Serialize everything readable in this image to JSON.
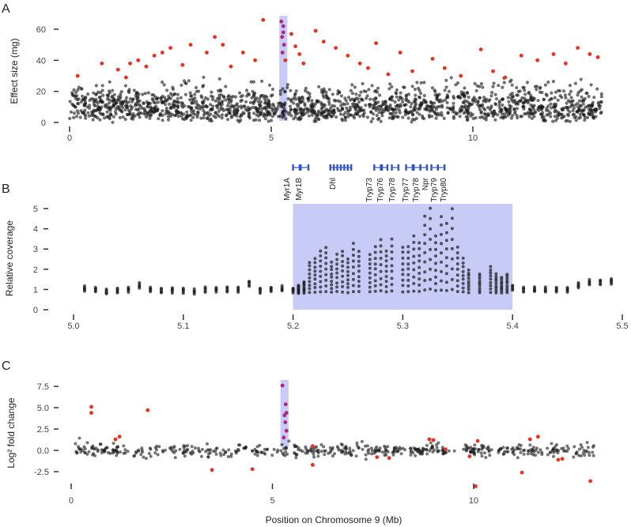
{
  "figure": {
    "xlabel": "Position on Chromosome 9 (Mb)"
  },
  "colors": {
    "points": "#1a1a1a",
    "significant": "#e8321e",
    "region": "#c9cbf7",
    "highlight": "#b0257e",
    "gene": "#3355cc"
  },
  "chart_data": [
    {
      "panel": "A",
      "type": "scatter",
      "ylabel": "Effect size  (mg)",
      "xlim": [
        -0.1,
        13.3
      ],
      "ylim": [
        -3,
        68
      ],
      "x_ticks": [
        "0",
        "5",
        "10"
      ],
      "y_ticks": [
        "0",
        "20",
        "40",
        "60"
      ],
      "highlight_region": [
        5.2,
        5.4
      ],
      "background_points": {
        "count": 1700,
        "x_range": [
          0,
          13.2
        ],
        "y_typical": [
          0,
          32
        ]
      },
      "significant_points": [
        [
          0.2,
          30
        ],
        [
          0.8,
          38
        ],
        [
          1.2,
          34
        ],
        [
          1.4,
          29
        ],
        [
          1.5,
          38
        ],
        [
          1.7,
          40
        ],
        [
          1.9,
          36
        ],
        [
          2.1,
          43
        ],
        [
          2.3,
          45
        ],
        [
          2.5,
          48
        ],
        [
          2.8,
          37
        ],
        [
          3.0,
          50
        ],
        [
          3.4,
          45
        ],
        [
          3.6,
          55
        ],
        [
          3.8,
          50
        ],
        [
          4.0,
          36
        ],
        [
          4.3,
          45
        ],
        [
          4.6,
          40
        ],
        [
          4.8,
          66
        ],
        [
          5.35,
          40
        ],
        [
          5.5,
          57
        ],
        [
          5.6,
          49
        ],
        [
          5.7,
          44
        ],
        [
          5.8,
          38
        ],
        [
          6.1,
          59
        ],
        [
          6.3,
          52
        ],
        [
          6.6,
          48
        ],
        [
          6.9,
          43
        ],
        [
          7.2,
          38
        ],
        [
          7.4,
          35
        ],
        [
          7.6,
          51
        ],
        [
          7.9,
          31
        ],
        [
          8.2,
          45
        ],
        [
          8.5,
          33
        ],
        [
          9.0,
          41
        ],
        [
          9.3,
          35
        ],
        [
          9.7,
          30
        ],
        [
          10.2,
          47
        ],
        [
          10.5,
          33
        ],
        [
          10.8,
          29
        ],
        [
          11.2,
          43
        ],
        [
          11.6,
          40
        ],
        [
          12.0,
          44
        ],
        [
          12.3,
          38
        ],
        [
          12.6,
          48
        ],
        [
          12.9,
          44
        ],
        [
          13.1,
          42
        ]
      ],
      "highlight_points": [
        [
          5.25,
          65
        ],
        [
          5.3,
          62
        ],
        [
          5.3,
          58
        ],
        [
          5.27,
          55
        ],
        [
          5.32,
          50
        ],
        [
          5.28,
          45
        ]
      ]
    },
    {
      "panel": "B",
      "type": "scatter",
      "ylabel": "Relative coverage",
      "xlim": [
        5.0,
        5.5
      ],
      "ylim": [
        0,
        5
      ],
      "x_ticks": [
        "5.0",
        "5.1",
        "5.2",
        "5.3",
        "5.4",
        "5.5"
      ],
      "y_ticks": [
        "0",
        "1",
        "2",
        "3",
        "4",
        "5"
      ],
      "highlight_region": [
        5.2,
        5.4
      ],
      "genes": [
        {
          "name": "Myr1A",
          "start": 5.2,
          "end": 5.206
        },
        {
          "name": "Myr1B",
          "start": 5.207,
          "end": 5.214
        },
        {
          "name": "Dhl",
          "start": 5.234,
          "end": 5.253
        },
        {
          "name": "Tryp73",
          "start": 5.274,
          "end": 5.28
        },
        {
          "name": "Tryp76",
          "start": 5.281,
          "end": 5.286
        },
        {
          "name": "Tryp78",
          "start": 5.29,
          "end": 5.296
        },
        {
          "name": "Tryp77",
          "start": 5.303,
          "end": 5.309
        },
        {
          "name": "Tryp78",
          "start": 5.31,
          "end": 5.316
        },
        {
          "name": "Npr",
          "start": 5.316,
          "end": 5.322
        },
        {
          "name": "Tryp79",
          "start": 5.326,
          "end": 5.332
        },
        {
          "name": "Tryp80",
          "start": 5.332,
          "end": 5.338
        }
      ],
      "coverage_bins": [
        {
          "x": 5.01,
          "mean": 1.05
        },
        {
          "x": 5.02,
          "mean": 1.0
        },
        {
          "x": 5.03,
          "mean": 0.9
        },
        {
          "x": 5.04,
          "mean": 0.95
        },
        {
          "x": 5.05,
          "mean": 1.0
        },
        {
          "x": 5.06,
          "mean": 1.2
        },
        {
          "x": 5.07,
          "mean": 1.0
        },
        {
          "x": 5.08,
          "mean": 0.95
        },
        {
          "x": 5.09,
          "mean": 0.95
        },
        {
          "x": 5.1,
          "mean": 0.95
        },
        {
          "x": 5.11,
          "mean": 0.9
        },
        {
          "x": 5.12,
          "mean": 1.0
        },
        {
          "x": 5.13,
          "mean": 1.0
        },
        {
          "x": 5.14,
          "mean": 1.0
        },
        {
          "x": 5.15,
          "mean": 1.0
        },
        {
          "x": 5.16,
          "mean": 1.3
        },
        {
          "x": 5.17,
          "mean": 0.95
        },
        {
          "x": 5.18,
          "mean": 1.0
        },
        {
          "x": 5.19,
          "mean": 1.05
        },
        {
          "x": 5.2,
          "mean": 0.95
        },
        {
          "x": 5.205,
          "mean": 1.0
        },
        {
          "x": 5.21,
          "mean": 1.1
        },
        {
          "x": 5.215,
          "mean": 1.6
        },
        {
          "x": 5.22,
          "mean": 1.7
        },
        {
          "x": 5.225,
          "mean": 1.9
        },
        {
          "x": 5.23,
          "mean": 2.0
        },
        {
          "x": 5.235,
          "mean": 1.6
        },
        {
          "x": 5.24,
          "mean": 1.8
        },
        {
          "x": 5.245,
          "mean": 1.9
        },
        {
          "x": 5.25,
          "mean": 1.7
        },
        {
          "x": 5.255,
          "mean": 2.1
        },
        {
          "x": 5.26,
          "mean": 1.9
        },
        {
          "x": 5.27,
          "mean": 1.8
        },
        {
          "x": 5.275,
          "mean": 2.0
        },
        {
          "x": 5.28,
          "mean": 2.2
        },
        {
          "x": 5.285,
          "mean": 1.9
        },
        {
          "x": 5.29,
          "mean": 2.2
        },
        {
          "x": 5.3,
          "mean": 2.0
        },
        {
          "x": 5.305,
          "mean": 2.0
        },
        {
          "x": 5.31,
          "mean": 2.3
        },
        {
          "x": 5.315,
          "mean": 2.1
        },
        {
          "x": 5.32,
          "mean": 2.8
        },
        {
          "x": 5.325,
          "mean": 3.0
        },
        {
          "x": 5.33,
          "mean": 2.3
        },
        {
          "x": 5.335,
          "mean": 2.8
        },
        {
          "x": 5.34,
          "mean": 2.6
        },
        {
          "x": 5.345,
          "mean": 3.0
        },
        {
          "x": 5.35,
          "mean": 2.0
        },
        {
          "x": 5.355,
          "mean": 1.7
        },
        {
          "x": 5.36,
          "mean": 1.4
        },
        {
          "x": 5.37,
          "mean": 1.3
        },
        {
          "x": 5.38,
          "mean": 1.5
        },
        {
          "x": 5.385,
          "mean": 1.3
        },
        {
          "x": 5.39,
          "mean": 1.2
        },
        {
          "x": 5.395,
          "mean": 1.3
        },
        {
          "x": 5.4,
          "mean": 1.1
        },
        {
          "x": 5.41,
          "mean": 1.0
        },
        {
          "x": 5.42,
          "mean": 1.0
        },
        {
          "x": 5.43,
          "mean": 1.0
        },
        {
          "x": 5.44,
          "mean": 1.0
        },
        {
          "x": 5.45,
          "mean": 1.0
        },
        {
          "x": 5.46,
          "mean": 1.2
        },
        {
          "x": 5.47,
          "mean": 1.35
        },
        {
          "x": 5.48,
          "mean": 1.35
        },
        {
          "x": 5.49,
          "mean": 1.4
        }
      ]
    },
    {
      "panel": "C",
      "type": "scatter",
      "ylabel": "Log² fold change",
      "xlim": [
        -0.2,
        13.3
      ],
      "ylim": [
        -4.3,
        8.3
      ],
      "x_ticks": [
        "0",
        "5",
        "10"
      ],
      "y_ticks": [
        "7.5",
        "5.0",
        "2.5",
        "0.0",
        "-2.5"
      ],
      "highlight_region": [
        5.2,
        5.4
      ],
      "background_points": {
        "count": 520,
        "x_range": [
          0.1,
          13.0
        ],
        "y_typical": [
          -0.8,
          1.0
        ]
      },
      "significant_points": [
        [
          0.5,
          5.1
        ],
        [
          0.5,
          4.4
        ],
        [
          1.1,
          1.3
        ],
        [
          1.2,
          1.6
        ],
        [
          1.9,
          4.7
        ],
        [
          3.5,
          -2.3
        ],
        [
          4.5,
          -2.2
        ],
        [
          6.0,
          0.5
        ],
        [
          6.0,
          -1.7
        ],
        [
          7.6,
          -0.8
        ],
        [
          7.9,
          -0.9
        ],
        [
          8.9,
          1.3
        ],
        [
          9.0,
          1.2
        ],
        [
          9.3,
          0.1
        ],
        [
          9.9,
          -0.7
        ],
        [
          10.1,
          1.1
        ],
        [
          10.05,
          -4.2
        ],
        [
          11.2,
          -2.6
        ],
        [
          11.4,
          1.3
        ],
        [
          11.6,
          1.6
        ],
        [
          12.1,
          -1.1
        ],
        [
          12.2,
          -1.0
        ],
        [
          12.9,
          -3.6
        ]
      ],
      "highlight_points": [
        [
          5.25,
          7.6
        ],
        [
          5.33,
          5.4
        ],
        [
          5.35,
          4.4
        ],
        [
          5.3,
          4.1
        ],
        [
          5.32,
          3.3
        ],
        [
          5.35,
          2.3
        ],
        [
          5.28,
          1.5
        ]
      ]
    }
  ]
}
